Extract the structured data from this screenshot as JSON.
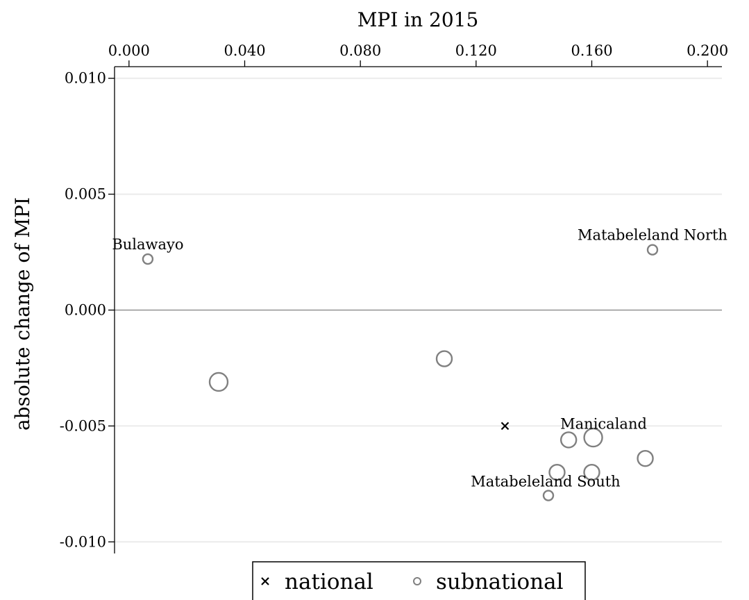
{
  "chart_data": {
    "type": "scatter",
    "xlabel": "MPI in 2015",
    "ylabel": "absolute change of MPI",
    "x_axis_position": "top",
    "xlim": [
      -0.005,
      0.205
    ],
    "ylim": [
      -0.0105,
      0.0105
    ],
    "x_ticks": [
      0.0,
      0.04,
      0.08,
      0.12,
      0.16,
      0.2
    ],
    "x_tick_labels": [
      "0.000",
      "0.040",
      "0.080",
      "0.120",
      "0.160",
      "0.200"
    ],
    "y_ticks": [
      0.01,
      0.005,
      0.0,
      -0.005,
      -0.01
    ],
    "y_tick_labels": [
      "0.010",
      "0.005",
      "0.000",
      "-0.005",
      "-0.010"
    ],
    "horizontal_gridlines": true,
    "zero_line": true,
    "legend_position": "bottom",
    "colors": {
      "subnational": "#808080",
      "national": "#000000",
      "grid": "#ebebeb",
      "zero": "#808080"
    },
    "series": [
      {
        "name": "national",
        "marker": "x",
        "points": [
          {
            "x": 0.13,
            "y": -0.005,
            "label": ""
          }
        ]
      },
      {
        "name": "subnational",
        "marker": "hollow-circle",
        "points": [
          {
            "x": 0.0065,
            "y": 0.0022,
            "size": "small",
            "label": "Bulawayo"
          },
          {
            "x": 0.181,
            "y": 0.0026,
            "size": "small",
            "label": "Matabeleland North"
          },
          {
            "x": 0.031,
            "y": -0.0031,
            "size": "large",
            "label": ""
          },
          {
            "x": 0.109,
            "y": -0.0021,
            "size": "medium",
            "label": ""
          },
          {
            "x": 0.152,
            "y": -0.0056,
            "size": "medium",
            "label": "Manicaland"
          },
          {
            "x": 0.1605,
            "y": -0.0055,
            "size": "large",
            "label": ""
          },
          {
            "x": 0.148,
            "y": -0.007,
            "size": "medium",
            "label": ""
          },
          {
            "x": 0.16,
            "y": -0.007,
            "size": "medium",
            "label": ""
          },
          {
            "x": 0.1785,
            "y": -0.0064,
            "size": "medium",
            "label": ""
          },
          {
            "x": 0.145,
            "y": -0.008,
            "size": "small",
            "label": "Matabeleland South"
          }
        ]
      }
    ]
  }
}
